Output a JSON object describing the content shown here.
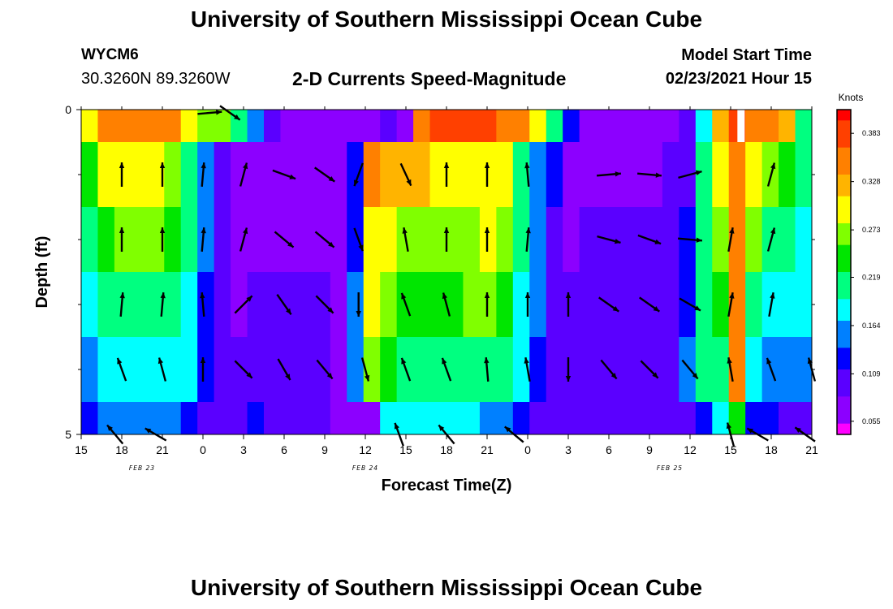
{
  "header": {
    "title": "University of Southern Mississippi Ocean Cube",
    "station_id": "WYCM6",
    "coordinates": "30.3260N 89.3260W",
    "chart_title": "2-D Currents Speed-Magnitude",
    "model_start_label": "Model Start Time",
    "model_start_value": "02/23/2021 Hour 15"
  },
  "footer": {
    "title": "University of Southern Mississippi Ocean Cube"
  },
  "colors": {
    "scale": [
      "#ff00ff",
      "#8c00ff",
      "#5a00ff",
      "#0000ff",
      "#0080ff",
      "#00ffff",
      "#00ff80",
      "#00e600",
      "#80ff00",
      "#ffff00",
      "#ffb400",
      "#ff8000",
      "#ff4000",
      "#ff0000"
    ],
    "arrow": "#000000",
    "blank": "#ffffff"
  },
  "chart_data": {
    "type": "heatmap",
    "title": "2-D Currents Speed-Magnitude",
    "xlabel": "Forecast Time(Z)",
    "ylabel": "Depth (ft)",
    "x_tick_labels": [
      "15",
      "18",
      "21",
      "0",
      "3",
      "6",
      "9",
      "12",
      "15",
      "18",
      "21",
      "0",
      "3",
      "6",
      "9",
      "12",
      "15",
      "18",
      "21"
    ],
    "x_hours": [
      0,
      3,
      6,
      9,
      12,
      15,
      18,
      21,
      24,
      27,
      30,
      33,
      36,
      39,
      42,
      45,
      48,
      51,
      54
    ],
    "xlim": [
      0,
      54
    ],
    "y_tick_labels": [
      "0",
      "5"
    ],
    "ylim": [
      0,
      5
    ],
    "y_minor_ticks": [
      1,
      2,
      3,
      4
    ],
    "date_labels": [
      {
        "text": "FEB 23",
        "hour": 4.5
      },
      {
        "text": "FEB 24",
        "hour": 21
      },
      {
        "text": "FEB 25",
        "hour": 43.5
      }
    ],
    "colorbar": {
      "title": "Knots",
      "ticks": [
        0.383,
        0.328,
        0.273,
        0.219,
        0.164,
        0.109,
        0.055
      ],
      "range": [
        0.04,
        0.41
      ]
    },
    "blank_hour": 48.8,
    "depth_layers": [
      {
        "depth_range": [
          0,
          0.5
        ],
        "speed_knots": [
          0.3,
          0.34,
          0.36,
          0.36,
          0.34,
          0.34,
          0.3,
          0.28,
          0.26,
          0.2,
          0.14,
          0.11,
          0.06,
          0.055,
          0.06,
          0.055,
          0.06,
          0.08,
          0.09,
          0.07,
          0.36,
          0.37,
          0.38,
          0.38,
          0.37,
          0.36,
          0.35,
          0.3,
          0.2,
          0.13,
          0.06,
          0.055,
          0.06,
          0.06,
          0.06,
          0.07,
          0.1,
          0.17,
          0.33,
          0.37,
          0.36,
          0.34,
          0.32,
          0.2
        ]
      },
      {
        "depth_range": [
          0.5,
          1.5
        ],
        "speed_knots": [
          0.25,
          0.3,
          0.31,
          0.3,
          0.29,
          0.27,
          0.22,
          0.14,
          0.1,
          0.055,
          0.06,
          0.06,
          0.07,
          0.08,
          0.08,
          0.07,
          0.12,
          0.34,
          0.33,
          0.32,
          0.32,
          0.31,
          0.31,
          0.31,
          0.3,
          0.29,
          0.2,
          0.15,
          0.12,
          0.07,
          0.07,
          0.08,
          0.08,
          0.07,
          0.08,
          0.09,
          0.11,
          0.2,
          0.3,
          0.36,
          0.3,
          0.27,
          0.25,
          0.2
        ]
      },
      {
        "depth_range": [
          1.5,
          2.5
        ],
        "speed_knots": [
          0.22,
          0.25,
          0.26,
          0.26,
          0.27,
          0.25,
          0.21,
          0.14,
          0.1,
          0.07,
          0.08,
          0.08,
          0.08,
          0.08,
          0.08,
          0.07,
          0.13,
          0.29,
          0.3,
          0.27,
          0.26,
          0.26,
          0.26,
          0.28,
          0.29,
          0.28,
          0.2,
          0.14,
          0.11,
          0.08,
          0.09,
          0.09,
          0.1,
          0.1,
          0.09,
          0.1,
          0.12,
          0.2,
          0.26,
          0.36,
          0.26,
          0.22,
          0.2,
          0.19
        ]
      },
      {
        "depth_range": [
          2.5,
          3.5
        ],
        "speed_knots": [
          0.19,
          0.21,
          0.21,
          0.21,
          0.22,
          0.21,
          0.19,
          0.13,
          0.1,
          0.08,
          0.09,
          0.09,
          0.1,
          0.09,
          0.09,
          0.08,
          0.14,
          0.3,
          0.26,
          0.25,
          0.23,
          0.24,
          0.25,
          0.26,
          0.26,
          0.25,
          0.19,
          0.14,
          0.11,
          0.09,
          0.1,
          0.1,
          0.1,
          0.1,
          0.1,
          0.1,
          0.13,
          0.21,
          0.24,
          0.36,
          0.2,
          0.19,
          0.18,
          0.17
        ]
      },
      {
        "depth_range": [
          3.5,
          4.5
        ],
        "speed_knots": [
          0.15,
          0.17,
          0.18,
          0.19,
          0.19,
          0.18,
          0.17,
          0.13,
          0.1,
          0.09,
          0.1,
          0.1,
          0.1,
          0.09,
          0.09,
          0.08,
          0.15,
          0.28,
          0.23,
          0.21,
          0.2,
          0.21,
          0.21,
          0.21,
          0.21,
          0.21,
          0.17,
          0.13,
          0.11,
          0.1,
          0.1,
          0.1,
          0.1,
          0.1,
          0.1,
          0.1,
          0.14,
          0.2,
          0.21,
          0.36,
          0.18,
          0.16,
          0.15,
          0.16
        ]
      },
      {
        "depth_range": [
          4.5,
          5
        ],
        "speed_knots": [
          0.13,
          0.14,
          0.16,
          0.16,
          0.16,
          0.15,
          0.12,
          0.11,
          0.1,
          0.11,
          0.13,
          0.11,
          0.1,
          0.1,
          0.09,
          0.08,
          0.06,
          0.07,
          0.18,
          0.18,
          0.17,
          0.17,
          0.17,
          0.17,
          0.16,
          0.15,
          0.13,
          0.11,
          0.1,
          0.1,
          0.1,
          0.1,
          0.09,
          0.1,
          0.1,
          0.1,
          0.11,
          0.13,
          0.19,
          0.25,
          0.13,
          0.12,
          0.11,
          0.11
        ]
      }
    ],
    "vectors": {
      "direction_convention": "degrees clockwise from north (direction current flows toward)",
      "layers": [
        {
          "depth": 0.05,
          "items": [
            {
              "hour": 9.5,
              "dir": 85
            },
            {
              "hour": 11,
              "dir": 125
            }
          ]
        },
        {
          "depth": 1.0,
          "items": [
            {
              "hour": 3,
              "dir": 0
            },
            {
              "hour": 6,
              "dir": 0
            },
            {
              "hour": 9,
              "dir": 5
            },
            {
              "hour": 12,
              "dir": 15
            },
            {
              "hour": 15,
              "dir": 110
            },
            {
              "hour": 18,
              "dir": 125
            },
            {
              "hour": 20.5,
              "dir": 200
            },
            {
              "hour": 24,
              "dir": 155
            },
            {
              "hour": 27,
              "dir": 0
            },
            {
              "hour": 30,
              "dir": 0
            },
            {
              "hour": 33,
              "dir": 355
            },
            {
              "hour": 39,
              "dir": 85
            },
            {
              "hour": 42,
              "dir": 95
            },
            {
              "hour": 45,
              "dir": 75
            },
            {
              "hour": 51,
              "dir": 15
            }
          ]
        },
        {
          "depth": 2.0,
          "items": [
            {
              "hour": 3,
              "dir": 0
            },
            {
              "hour": 6,
              "dir": 0
            },
            {
              "hour": 9,
              "dir": 5
            },
            {
              "hour": 12,
              "dir": 15
            },
            {
              "hour": 15,
              "dir": 130
            },
            {
              "hour": 18,
              "dir": 130
            },
            {
              "hour": 20.5,
              "dir": 160
            },
            {
              "hour": 24,
              "dir": 350
            },
            {
              "hour": 27,
              "dir": 0
            },
            {
              "hour": 30,
              "dir": 0
            },
            {
              "hour": 33,
              "dir": 5
            },
            {
              "hour": 39,
              "dir": 105
            },
            {
              "hour": 42,
              "dir": 110
            },
            {
              "hour": 45,
              "dir": 95
            },
            {
              "hour": 48,
              "dir": 10
            },
            {
              "hour": 51,
              "dir": 15
            }
          ]
        },
        {
          "depth": 3.0,
          "items": [
            {
              "hour": 3,
              "dir": 5
            },
            {
              "hour": 6,
              "dir": 5
            },
            {
              "hour": 9,
              "dir": 355
            },
            {
              "hour": 12,
              "dir": 45
            },
            {
              "hour": 15,
              "dir": 145
            },
            {
              "hour": 18,
              "dir": 135
            },
            {
              "hour": 20.5,
              "dir": 180
            },
            {
              "hour": 24,
              "dir": 340
            },
            {
              "hour": 27,
              "dir": 345
            },
            {
              "hour": 30,
              "dir": 0
            },
            {
              "hour": 33,
              "dir": 0
            },
            {
              "hour": 36,
              "dir": 0
            },
            {
              "hour": 39,
              "dir": 125
            },
            {
              "hour": 42,
              "dir": 125
            },
            {
              "hour": 45,
              "dir": 120
            },
            {
              "hour": 48,
              "dir": 10
            },
            {
              "hour": 51,
              "dir": 10
            }
          ]
        },
        {
          "depth": 4.0,
          "items": [
            {
              "hour": 3,
              "dir": 340
            },
            {
              "hour": 6,
              "dir": 345
            },
            {
              "hour": 9,
              "dir": 0
            },
            {
              "hour": 12,
              "dir": 135
            },
            {
              "hour": 15,
              "dir": 150
            },
            {
              "hour": 18,
              "dir": 140
            },
            {
              "hour": 21,
              "dir": 165
            },
            {
              "hour": 24,
              "dir": 340
            },
            {
              "hour": 27,
              "dir": 340
            },
            {
              "hour": 30,
              "dir": 355
            },
            {
              "hour": 33,
              "dir": 350
            },
            {
              "hour": 36,
              "dir": 180
            },
            {
              "hour": 39,
              "dir": 140
            },
            {
              "hour": 42,
              "dir": 135
            },
            {
              "hour": 45,
              "dir": 140
            },
            {
              "hour": 48,
              "dir": 350
            },
            {
              "hour": 51,
              "dir": 340
            },
            {
              "hour": 54,
              "dir": 345
            }
          ]
        },
        {
          "depth": 5.0,
          "items": [
            {
              "hour": 2.5,
              "dir": 320
            },
            {
              "hour": 5.5,
              "dir": 300
            },
            {
              "hour": 23.5,
              "dir": 340
            },
            {
              "hour": 27,
              "dir": 320
            },
            {
              "hour": 32,
              "dir": 310
            },
            {
              "hour": 48,
              "dir": 345
            },
            {
              "hour": 50,
              "dir": 300
            },
            {
              "hour": 53.5,
              "dir": 305
            }
          ]
        }
      ]
    }
  }
}
